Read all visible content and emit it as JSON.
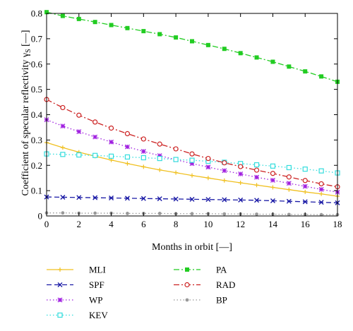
{
  "chart_data": {
    "type": "line",
    "xlabel": "Months in orbit [—]",
    "ylabel": "Coefficient of specular reflectivity γ",
    "ylabel_sub": "S",
    "ylabel_unit": " [—]",
    "xlim": [
      0,
      18
    ],
    "ylim": [
      0,
      0.8
    ],
    "xticks": [
      0,
      2,
      4,
      6,
      8,
      10,
      12,
      14,
      16,
      18
    ],
    "yticks": [
      0,
      0.1,
      0.2,
      0.3,
      0.4,
      0.5,
      0.6,
      0.7,
      0.8
    ],
    "xtick_labels": [
      "0",
      "2",
      "4",
      "6",
      "8",
      "10",
      "12",
      "14",
      "16",
      "18"
    ],
    "ytick_labels": [
      "0",
      "0.1",
      "0.2",
      "0.3",
      "0.4",
      "0.5",
      "0.6",
      "0.7",
      "0.8"
    ],
    "grid": false,
    "legend_position": "below",
    "x": [
      0,
      1,
      2,
      3,
      4,
      5,
      6,
      7,
      8,
      9,
      10,
      11,
      12,
      13,
      14,
      15,
      16,
      17,
      18
    ],
    "series": [
      {
        "name": "MLI",
        "color": "#f0c020",
        "dash": "solid",
        "marker": "plus",
        "values": [
          0.29,
          0.27,
          0.252,
          0.236,
          0.221,
          0.207,
          0.194,
          0.182,
          0.171,
          0.16,
          0.15,
          0.14,
          0.131,
          0.122,
          0.113,
          0.104,
          0.095,
          0.087,
          0.078
        ]
      },
      {
        "name": "SPF",
        "color": "#1a1aa6",
        "dash": "dash",
        "marker": "x",
        "values": [
          0.075,
          0.074,
          0.073,
          0.072,
          0.071,
          0.07,
          0.069,
          0.068,
          0.067,
          0.066,
          0.065,
          0.064,
          0.063,
          0.062,
          0.06,
          0.058,
          0.056,
          0.054,
          0.052
        ]
      },
      {
        "name": "WP",
        "color": "#a020e0",
        "dash": "dot",
        "marker": "star",
        "values": [
          0.38,
          0.355,
          0.333,
          0.312,
          0.292,
          0.273,
          0.255,
          0.238,
          0.222,
          0.207,
          0.193,
          0.179,
          0.166,
          0.153,
          0.141,
          0.129,
          0.117,
          0.105,
          0.094
        ]
      },
      {
        "name": "KEV",
        "color": "#33dddd",
        "dash": "dot",
        "marker": "square",
        "values": [
          0.245,
          0.243,
          0.241,
          0.239,
          0.236,
          0.233,
          0.23,
          0.227,
          0.223,
          0.22,
          0.216,
          0.212,
          0.207,
          0.202,
          0.197,
          0.191,
          0.185,
          0.178,
          0.17
        ]
      },
      {
        "name": "PA",
        "color": "#22cc22",
        "dash": "dashdot",
        "marker": "filled-square",
        "values": [
          0.805,
          0.79,
          0.778,
          0.766,
          0.754,
          0.742,
          0.73,
          0.718,
          0.705,
          0.69,
          0.675,
          0.66,
          0.643,
          0.626,
          0.609,
          0.59,
          0.571,
          0.551,
          0.53
        ]
      },
      {
        "name": "RAD",
        "color": "#cc2222",
        "dash": "dashdot",
        "marker": "circle",
        "values": [
          0.46,
          0.428,
          0.398,
          0.371,
          0.347,
          0.325,
          0.304,
          0.284,
          0.265,
          0.245,
          0.227,
          0.21,
          0.195,
          0.181,
          0.168,
          0.154,
          0.14,
          0.127,
          0.115
        ]
      },
      {
        "name": "BP",
        "color": "#999999",
        "dash": "dot",
        "marker": "filled-circle",
        "values": [
          0.012,
          0.012,
          0.011,
          0.011,
          0.011,
          0.01,
          0.01,
          0.01,
          0.009,
          0.009,
          0.009,
          0.008,
          0.008,
          0.007,
          0.007,
          0.006,
          0.006,
          0.005,
          0.005
        ]
      }
    ],
    "legend_order": [
      [
        "MLI",
        "PA"
      ],
      [
        "SPF",
        "RAD"
      ],
      [
        "WP",
        "BP"
      ],
      [
        "KEV",
        null
      ]
    ]
  }
}
